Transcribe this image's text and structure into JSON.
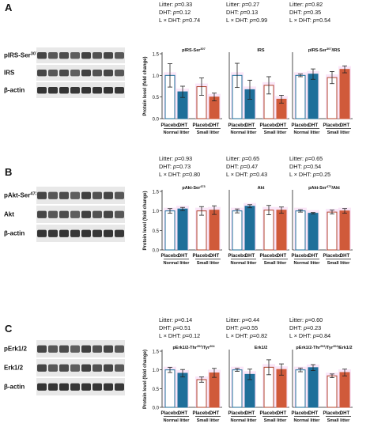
{
  "colors": {
    "placebo_normal": "#ffffff",
    "placebo_normal_edge": "#1f6f9a",
    "dht_normal": "#1f6f9a",
    "placebo_small": "#ffffff",
    "placebo_small_edge": "#b0442e",
    "dht_small": "#d05a3a",
    "highlight": "#f6d2f2"
  },
  "shared": {
    "ylabel": "Protein level (fold change)",
    "yticks": [
      "0.0",
      "0.5",
      "1.0",
      "1.5"
    ],
    "bar_labels": [
      "Placebo",
      "DHT",
      "Placebo",
      "DHT"
    ],
    "group_labels": [
      "Normal litter",
      "Small litter"
    ]
  },
  "panels": [
    {
      "letter": "A",
      "blot_labels": [
        {
          "text": "pIRS-Ser",
          "sup": "307"
        },
        {
          "text": "IRS",
          "sup": ""
        },
        {
          "text": "β-actin",
          "sup": ""
        }
      ],
      "charts": [
        {
          "stats": [
            "Litter: p=0.33",
            "DHT: p=0.12",
            "L × DHT: p=0.74"
          ],
          "title": {
            "text": "pIRS-Ser",
            "sup": "307",
            "post": ""
          }
        },
        {
          "stats": [
            "Litter: p=0.27",
            "DHT: p=0.13",
            "L × DHT: p=0.99"
          ],
          "title": {
            "text": "IRS",
            "sup": "",
            "post": ""
          }
        },
        {
          "stats": [
            "Litter: p=0.82",
            "DHT: p=0.35",
            "L × DHT: p=0.54"
          ],
          "title": {
            "text": "pIRS-Ser",
            "sup": "307",
            "post": "/IRS"
          }
        }
      ]
    },
    {
      "letter": "B",
      "blot_labels": [
        {
          "text": "pAkt-Ser",
          "sup": "473"
        },
        {
          "text": "Akt",
          "sup": ""
        },
        {
          "text": "β-actin",
          "sup": ""
        }
      ],
      "charts": [
        {
          "stats": [
            "Litter: p=0.93",
            "DHT: p=0.73",
            "L × DHT: p=0.80"
          ],
          "title": {
            "text": "pAkt-Ser",
            "sup": "473",
            "post": ""
          }
        },
        {
          "stats": [
            "Litter: p=0.65",
            "DHT: p=0.47",
            "L × DHT: p=0.43"
          ],
          "title": {
            "text": "Akt",
            "sup": "",
            "post": ""
          }
        },
        {
          "stats": [
            "Litter: p=0.65",
            "DHT: p=0.54",
            "L × DHT: p=0.25"
          ],
          "title": {
            "text": "pAkt-Ser",
            "sup": "473",
            "post": "/Akt"
          }
        }
      ]
    },
    {
      "letter": "C",
      "blot_labels": [
        {
          "text": "pErk1/2",
          "sup": ""
        },
        {
          "text": "Erk1/2",
          "sup": ""
        },
        {
          "text": "β-actin",
          "sup": ""
        }
      ],
      "charts": [
        {
          "stats": [
            "Litter: p=0.14",
            "DHT: p=0.51",
            "L × DHT: p=0.12"
          ],
          "title": {
            "text": "pErk1/2-Thr",
            "sup": "202",
            "post": "/Tyr",
            "sup2": "204",
            "post2": ""
          }
        },
        {
          "stats": [
            "Litter: p=0.44",
            "DHT: p=0.55",
            "L × DHT: p=0.82"
          ],
          "title": {
            "text": "Erk1/2",
            "sup": "",
            "post": ""
          }
        },
        {
          "stats": [
            "Litter: p=0.60",
            "DHT: p=0.23",
            "L × DHT: p=0.84"
          ],
          "title": {
            "text": "pErk1/2-Thr",
            "sup": "202",
            "post": "/Tyr",
            "sup2": "204",
            "post2": "/Erk1/2"
          }
        }
      ]
    }
  ],
  "chart_data": [
    {
      "type": "bar",
      "title": "pIRS-Ser307",
      "categories": [
        "Placebo",
        "DHT",
        "Placebo",
        "DHT"
      ],
      "groups": [
        "Normal litter",
        "Small litter"
      ],
      "ylabel": "Protein level (fold change)",
      "ylim": [
        0,
        1.5
      ],
      "values": [
        1.0,
        0.62,
        0.74,
        0.5
      ],
      "errors": [
        0.27,
        0.13,
        0.2,
        0.09
      ]
    },
    {
      "type": "bar",
      "title": "IRS",
      "categories": [
        "Placebo",
        "DHT",
        "Placebo",
        "DHT"
      ],
      "groups": [
        "Normal litter",
        "Small litter"
      ],
      "ylabel": "Protein level (fold change)",
      "ylim": [
        0,
        1.5
      ],
      "values": [
        1.0,
        0.67,
        0.77,
        0.45
      ],
      "errors": [
        0.28,
        0.22,
        0.2,
        0.09
      ]
    },
    {
      "type": "bar",
      "title": "pIRS-Ser307/IRS",
      "categories": [
        "Placebo",
        "DHT",
        "Placebo",
        "DHT"
      ],
      "groups": [
        "Normal litter",
        "Small litter"
      ],
      "ylabel": "Protein level (fold change)",
      "ylim": [
        0,
        1.5
      ],
      "values": [
        1.0,
        1.03,
        0.95,
        1.14
      ],
      "errors": [
        0.03,
        0.12,
        0.14,
        0.08
      ]
    },
    {
      "type": "bar",
      "title": "pAkt-Ser473",
      "categories": [
        "Placebo",
        "DHT",
        "Placebo",
        "DHT"
      ],
      "groups": [
        "Normal litter",
        "Small litter"
      ],
      "ylabel": "Protein level (fold change)",
      "ylim": [
        0,
        1.5
      ],
      "values": [
        1.0,
        1.05,
        1.0,
        1.02
      ],
      "errors": [
        0.06,
        0.04,
        0.11,
        0.11
      ]
    },
    {
      "type": "bar",
      "title": "Akt",
      "categories": [
        "Placebo",
        "DHT",
        "Placebo",
        "DHT"
      ],
      "groups": [
        "Normal litter",
        "Small litter"
      ],
      "ylabel": "Protein level (fold change)",
      "ylim": [
        0,
        1.5
      ],
      "values": [
        1.0,
        1.12,
        1.02,
        1.02
      ],
      "errors": [
        0.05,
        0.04,
        0.12,
        0.08
      ]
    },
    {
      "type": "bar",
      "title": "pAkt-Ser473/Akt",
      "categories": [
        "Placebo",
        "DHT",
        "Placebo",
        "DHT"
      ],
      "groups": [
        "Normal litter",
        "Small litter"
      ],
      "ylabel": "Protein level (fold change)",
      "ylim": [
        0,
        1.5
      ],
      "values": [
        1.0,
        0.94,
        0.97,
        1.0
      ],
      "errors": [
        0.03,
        0.02,
        0.05,
        0.06
      ]
    },
    {
      "type": "bar",
      "title": "pErk1/2-Thr202/Tyr204",
      "categories": [
        "Placebo",
        "DHT",
        "Placebo",
        "DHT"
      ],
      "groups": [
        "Normal litter",
        "Small litter"
      ],
      "ylabel": "Protein level (fold change)",
      "ylim": [
        0,
        1.5
      ],
      "values": [
        1.0,
        0.91,
        0.74,
        0.92
      ],
      "errors": [
        0.07,
        0.1,
        0.07,
        0.12
      ]
    },
    {
      "type": "bar",
      "title": "Erk1/2",
      "categories": [
        "Placebo",
        "DHT",
        "Placebo",
        "DHT"
      ],
      "groups": [
        "Normal litter",
        "Small litter"
      ],
      "ylabel": "Protein level (fold change)",
      "ylim": [
        0,
        1.5
      ],
      "values": [
        1.0,
        0.88,
        1.07,
        1.01
      ],
      "errors": [
        0.04,
        0.14,
        0.2,
        0.15
      ]
    },
    {
      "type": "bar",
      "title": "pErk1/2-Thr202/Tyr204/Erk1/2",
      "categories": [
        "Placebo",
        "DHT",
        "Placebo",
        "DHT"
      ],
      "groups": [
        "Normal litter",
        "Small litter"
      ],
      "ylabel": "Protein level (fold change)",
      "ylim": [
        0,
        1.5
      ],
      "values": [
        1.0,
        1.06,
        0.84,
        0.93
      ],
      "errors": [
        0.05,
        0.08,
        0.05,
        0.09
      ]
    }
  ]
}
